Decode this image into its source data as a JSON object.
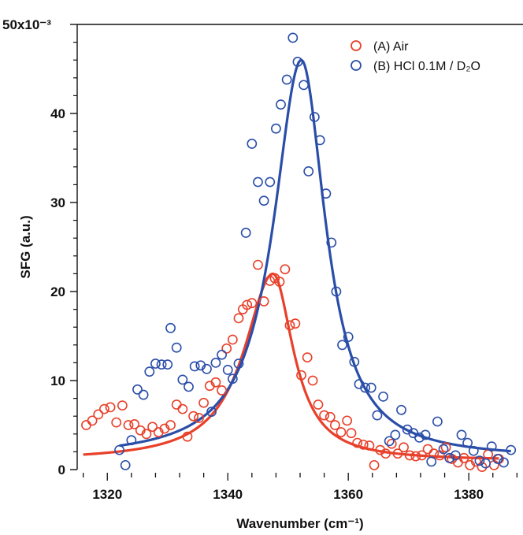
{
  "chart_data": {
    "type": "scatter",
    "xlabel": "Wavenumber (cm⁻¹)",
    "ylabel": "SFG (a.u.)",
    "y_scale_label": "x10⁻³",
    "xlim": [
      1315,
      1389
    ],
    "ylim": [
      0,
      50
    ],
    "x_ticks": [
      1320,
      1340,
      1360,
      1380
    ],
    "y_ticks": [
      0,
      10,
      20,
      30,
      40,
      50
    ],
    "y_tick_labels": [
      "0",
      "10",
      "20",
      "30",
      "40",
      "50"
    ],
    "grid": false,
    "legend_position": "top-right",
    "series": [
      {
        "name": "(A) Air",
        "color": "#e8402a",
        "marker": "open-circle",
        "points": [
          [
            1316.5,
            5.0
          ],
          [
            1317.5,
            5.5
          ],
          [
            1318.5,
            6.2
          ],
          [
            1319.5,
            6.8
          ],
          [
            1320.5,
            7.0
          ],
          [
            1321.5,
            5.3
          ],
          [
            1322.5,
            7.2
          ],
          [
            1323.5,
            5.0
          ],
          [
            1324.5,
            5.1
          ],
          [
            1325.5,
            4.4
          ],
          [
            1326.5,
            4.0
          ],
          [
            1327.5,
            4.8
          ],
          [
            1328.5,
            4.2
          ],
          [
            1329.5,
            4.6
          ],
          [
            1330.5,
            5.0
          ],
          [
            1331.5,
            7.3
          ],
          [
            1332.5,
            6.8
          ],
          [
            1333.3,
            3.7
          ],
          [
            1334.3,
            6.0
          ],
          [
            1335.2,
            5.8
          ],
          [
            1336.0,
            7.5
          ],
          [
            1337.0,
            9.4
          ],
          [
            1338.0,
            9.8
          ],
          [
            1339.0,
            8.9
          ],
          [
            1339.8,
            13.6
          ],
          [
            1340.8,
            14.6
          ],
          [
            1341.8,
            17.0
          ],
          [
            1342.5,
            18.0
          ],
          [
            1343.2,
            18.5
          ],
          [
            1344.0,
            18.7
          ],
          [
            1345.0,
            23.0
          ],
          [
            1346.0,
            18.9
          ],
          [
            1347.0,
            21.2
          ],
          [
            1347.8,
            21.5
          ],
          [
            1348.6,
            21.1
          ],
          [
            1349.5,
            22.5
          ],
          [
            1350.3,
            16.2
          ],
          [
            1351.2,
            16.4
          ],
          [
            1352.2,
            10.6
          ],
          [
            1353.2,
            12.6
          ],
          [
            1354.1,
            10.0
          ],
          [
            1355.0,
            7.3
          ],
          [
            1356.0,
            6.1
          ],
          [
            1357.0,
            5.9
          ],
          [
            1357.8,
            5.0
          ],
          [
            1358.8,
            4.2
          ],
          [
            1359.8,
            5.5
          ],
          [
            1360.5,
            4.1
          ],
          [
            1361.5,
            3.0
          ],
          [
            1362.5,
            2.8
          ],
          [
            1363.5,
            2.7
          ],
          [
            1364.3,
            0.5
          ],
          [
            1365.3,
            2.2
          ],
          [
            1366.2,
            1.8
          ],
          [
            1367.2,
            2.9
          ],
          [
            1368.2,
            1.8
          ],
          [
            1369.2,
            2.5
          ],
          [
            1370.2,
            1.6
          ],
          [
            1371.2,
            1.5
          ],
          [
            1372.2,
            1.6
          ],
          [
            1373.2,
            2.3
          ],
          [
            1374.2,
            1.8
          ],
          [
            1375.2,
            1.6
          ],
          [
            1376.2,
            2.5
          ],
          [
            1377.2,
            1.2
          ],
          [
            1378.2,
            0.8
          ],
          [
            1379.2,
            1.3
          ],
          [
            1380.2,
            0.5
          ],
          [
            1381.2,
            0.9
          ],
          [
            1382.2,
            0.3
          ],
          [
            1383.2,
            1.7
          ],
          [
            1384.2,
            0.5
          ],
          [
            1385.0,
            1.2
          ]
        ],
        "fit": {
          "baseline": 1.0,
          "amplitude": 21.0,
          "center": 1347.5,
          "gamma_left": 5.8,
          "gamma_right": 4.1,
          "x_range": [
            1316,
            1385
          ]
        }
      },
      {
        "name": "(B) HCl 0.1M / D₂O",
        "color": "#2a4ea8",
        "marker": "open-circle",
        "points": [
          [
            1322.0,
            2.2
          ],
          [
            1323.0,
            0.5
          ],
          [
            1324.0,
            3.3
          ],
          [
            1325.0,
            9.0
          ],
          [
            1326.0,
            8.4
          ],
          [
            1327.0,
            11.0
          ],
          [
            1328.0,
            11.9
          ],
          [
            1329.0,
            11.8
          ],
          [
            1330.0,
            11.8
          ],
          [
            1330.5,
            15.9
          ],
          [
            1331.5,
            13.7
          ],
          [
            1332.5,
            10.1
          ],
          [
            1333.5,
            9.3
          ],
          [
            1334.5,
            11.6
          ],
          [
            1335.5,
            11.7
          ],
          [
            1336.5,
            11.3
          ],
          [
            1337.3,
            6.5
          ],
          [
            1338.0,
            12.0
          ],
          [
            1339.0,
            12.9
          ],
          [
            1340.0,
            11.2
          ],
          [
            1340.8,
            10.2
          ],
          [
            1341.8,
            11.9
          ],
          [
            1343.0,
            26.6
          ],
          [
            1344.0,
            36.6
          ],
          [
            1345.0,
            32.3
          ],
          [
            1346.0,
            30.2
          ],
          [
            1347.0,
            32.3
          ],
          [
            1348.0,
            38.3
          ],
          [
            1348.8,
            41.0
          ],
          [
            1349.8,
            43.8
          ],
          [
            1350.8,
            48.5
          ],
          [
            1351.6,
            45.8
          ],
          [
            1352.6,
            43.2
          ],
          [
            1353.4,
            33.5
          ],
          [
            1354.4,
            39.6
          ],
          [
            1355.3,
            37.0
          ],
          [
            1356.3,
            31.0
          ],
          [
            1357.2,
            25.5
          ],
          [
            1358.0,
            20.0
          ],
          [
            1359.0,
            14.0
          ],
          [
            1360.0,
            14.9
          ],
          [
            1361.0,
            12.1
          ],
          [
            1361.8,
            9.6
          ],
          [
            1362.8,
            9.2
          ],
          [
            1363.8,
            9.2
          ],
          [
            1364.8,
            6.1
          ],
          [
            1365.8,
            8.2
          ],
          [
            1366.8,
            3.2
          ],
          [
            1367.8,
            3.9
          ],
          [
            1368.8,
            6.7
          ],
          [
            1369.8,
            4.5
          ],
          [
            1370.8,
            4.1
          ],
          [
            1371.8,
            3.6
          ],
          [
            1372.8,
            3.9
          ],
          [
            1373.8,
            0.9
          ],
          [
            1374.8,
            5.4
          ],
          [
            1375.8,
            2.3
          ],
          [
            1376.8,
            1.3
          ],
          [
            1377.8,
            1.6
          ],
          [
            1378.8,
            3.9
          ],
          [
            1379.8,
            3.0
          ],
          [
            1380.8,
            2.1
          ],
          [
            1381.8,
            1.0
          ],
          [
            1382.8,
            0.7
          ],
          [
            1383.8,
            2.6
          ],
          [
            1384.8,
            1.2
          ],
          [
            1385.8,
            0.8
          ],
          [
            1387.0,
            2.2
          ]
        ],
        "fit": {
          "baseline": 1.2,
          "amplitude": 44.8,
          "center": 1352.2,
          "gamma_left": 5.6,
          "gamma_right": 4.9,
          "x_range": [
            1322,
            1387
          ]
        }
      }
    ]
  }
}
